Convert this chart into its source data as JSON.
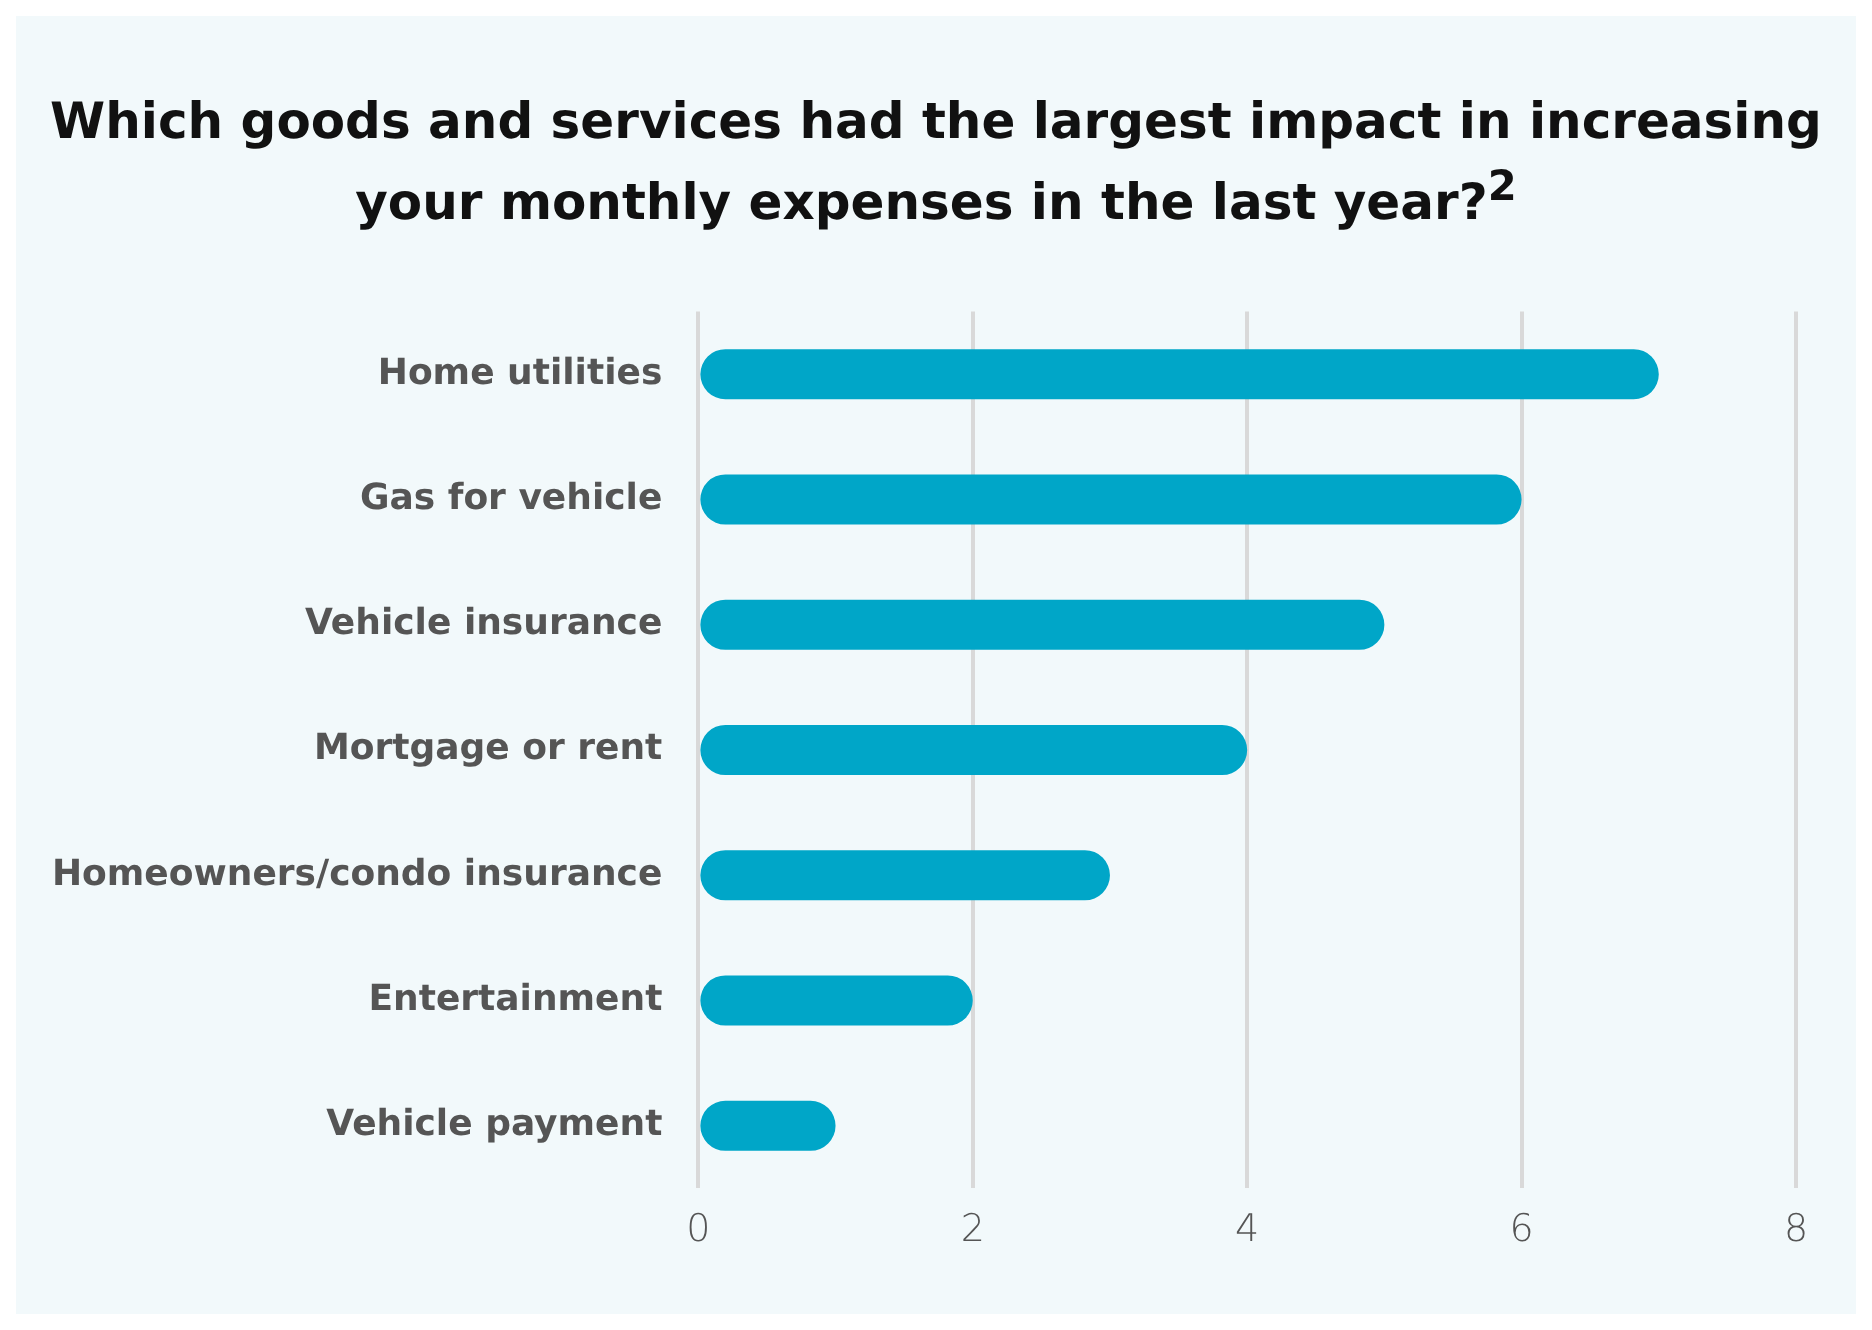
{
  "chart_data": {
    "type": "bar",
    "orientation": "horizontal",
    "title": "Which goods and services had the largest impact in increasing your monthly expenses in the last year?$^{2}$",
    "categories": [
      "Home utilities",
      "Gas for vehicle",
      "Vehicle insurance",
      "Mortgage or rent",
      "Homeowners/condo insurance",
      "Entertainment",
      "Vehicle payment"
    ],
    "values": [
      7,
      6,
      5,
      4,
      3,
      2,
      1
    ],
    "color": "#00a6c8",
    "xlim": [
      0,
      8
    ],
    "xticks": [
      0,
      2,
      4,
      6,
      8
    ],
    "grid": "x",
    "legend": false
  }
}
